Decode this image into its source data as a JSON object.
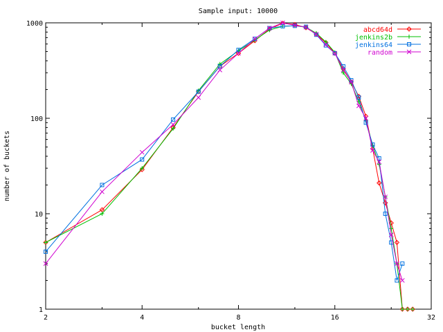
{
  "chart_data": {
    "type": "line",
    "title": "Sample input: 10000",
    "xlabel": "bucket length",
    "ylabel": "number of buckets",
    "x_scale": "log2",
    "y_scale": "log10",
    "xlim": [
      2,
      32
    ],
    "ylim": [
      1,
      1000
    ],
    "xticks": [
      {
        "value": 2,
        "label": "2"
      },
      {
        "value": 4,
        "label": "4"
      },
      {
        "value": 8,
        "label": "8"
      },
      {
        "value": 16,
        "label": "16"
      },
      {
        "value": 32,
        "label": "32"
      }
    ],
    "yticks": [
      {
        "value": 1,
        "label": "1"
      },
      {
        "value": 10,
        "label": "10"
      },
      {
        "value": 100,
        "label": "100"
      },
      {
        "value": 1000,
        "label": "1000"
      }
    ],
    "legend_position": "top-right",
    "series": [
      {
        "name": "abcd64d",
        "color": "#ff0000",
        "marker": "diamond",
        "points": [
          [
            2,
            5
          ],
          [
            3,
            11
          ],
          [
            4,
            29
          ],
          [
            5,
            80
          ],
          [
            6,
            190
          ],
          [
            7,
            350
          ],
          [
            8,
            480
          ],
          [
            9,
            650
          ],
          [
            10,
            860
          ],
          [
            11,
            990
          ],
          [
            12,
            960
          ],
          [
            13,
            890
          ],
          [
            14,
            760
          ],
          [
            15,
            620
          ],
          [
            16,
            480
          ],
          [
            17,
            330
          ],
          [
            18,
            240
          ],
          [
            19,
            170
          ],
          [
            20,
            105
          ],
          [
            21,
            48
          ],
          [
            22,
            21
          ],
          [
            23,
            13
          ],
          [
            24,
            8
          ],
          [
            25,
            5
          ],
          [
            26,
            1
          ],
          [
            27,
            1
          ],
          [
            28,
            1
          ]
        ]
      },
      {
        "name": "jenkins2b",
        "color": "#00c000",
        "marker": "plus",
        "points": [
          [
            2,
            5
          ],
          [
            3,
            10
          ],
          [
            4,
            30
          ],
          [
            5,
            78
          ],
          [
            6,
            195
          ],
          [
            7,
            370
          ],
          [
            8,
            510
          ],
          [
            9,
            660
          ],
          [
            10,
            840
          ],
          [
            11,
            920
          ],
          [
            12,
            930
          ],
          [
            13,
            900
          ],
          [
            14,
            780
          ],
          [
            15,
            630
          ],
          [
            16,
            490
          ],
          [
            17,
            300
          ],
          [
            18,
            230
          ],
          [
            19,
            150
          ],
          [
            20,
            95
          ],
          [
            21,
            52
          ],
          [
            22,
            33
          ],
          [
            23,
            15
          ],
          [
            24,
            7
          ],
          [
            25,
            3
          ],
          [
            26,
            1
          ],
          [
            27,
            1
          ],
          [
            28,
            1
          ]
        ]
      },
      {
        "name": "jenkins64",
        "color": "#0070e0",
        "marker": "square",
        "points": [
          [
            2,
            4
          ],
          [
            3,
            20
          ],
          [
            4,
            37
          ],
          [
            5,
            97
          ],
          [
            6,
            190
          ],
          [
            7,
            350
          ],
          [
            8,
            520
          ],
          [
            9,
            680
          ],
          [
            10,
            880
          ],
          [
            11,
            920
          ],
          [
            12,
            930
          ],
          [
            13,
            910
          ],
          [
            14,
            750
          ],
          [
            15,
            580
          ],
          [
            16,
            480
          ],
          [
            17,
            350
          ],
          [
            18,
            250
          ],
          [
            19,
            165
          ],
          [
            20,
            90
          ],
          [
            21,
            53
          ],
          [
            22,
            38
          ],
          [
            23,
            10
          ],
          [
            24,
            5
          ],
          [
            25,
            2
          ],
          [
            26,
            3
          ]
        ]
      },
      {
        "name": "random",
        "color": "#d000d0",
        "marker": "x",
        "points": [
          [
            2,
            3
          ],
          [
            3,
            17
          ],
          [
            4,
            44
          ],
          [
            5,
            86
          ],
          [
            6,
            165
          ],
          [
            7,
            320
          ],
          [
            8,
            480
          ],
          [
            9,
            680
          ],
          [
            10,
            880
          ],
          [
            11,
            1000
          ],
          [
            12,
            940
          ],
          [
            13,
            900
          ],
          [
            14,
            760
          ],
          [
            15,
            590
          ],
          [
            16,
            480
          ],
          [
            17,
            320
          ],
          [
            18,
            240
          ],
          [
            19,
            135
          ],
          [
            20,
            100
          ],
          [
            21,
            46
          ],
          [
            22,
            35
          ],
          [
            23,
            15
          ],
          [
            24,
            6
          ],
          [
            25,
            3
          ],
          [
            26,
            2
          ]
        ]
      }
    ]
  }
}
